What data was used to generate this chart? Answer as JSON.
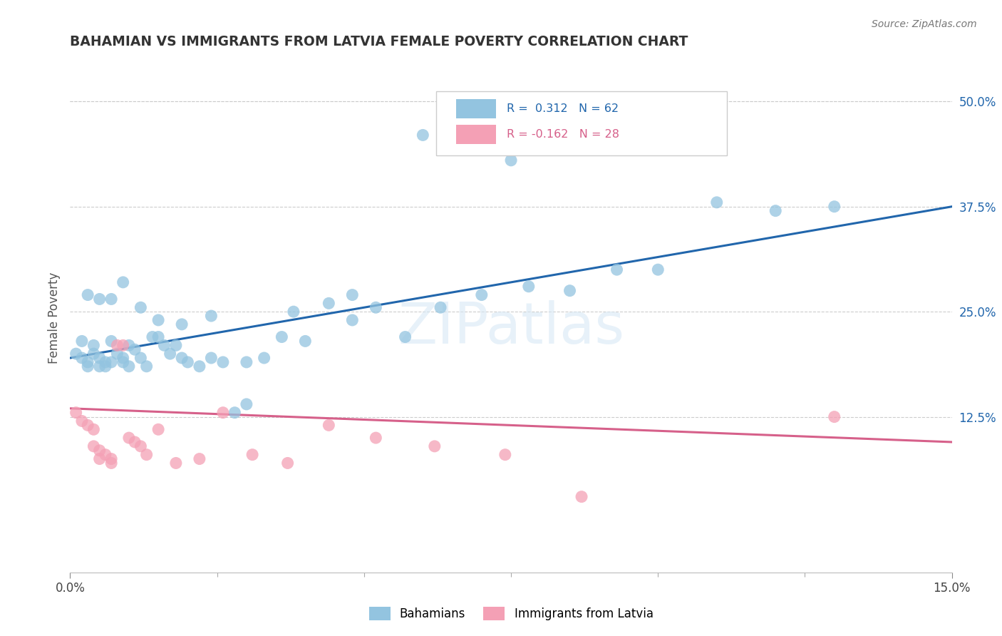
{
  "title": "BAHAMIAN VS IMMIGRANTS FROM LATVIA FEMALE POVERTY CORRELATION CHART",
  "source": "Source: ZipAtlas.com",
  "ylabel": "Female Poverty",
  "ytick_labels": [
    "50.0%",
    "37.5%",
    "25.0%",
    "12.5%"
  ],
  "ytick_values": [
    0.5,
    0.375,
    0.25,
    0.125
  ],
  "xmin": 0.0,
  "xmax": 0.15,
  "ymin": -0.06,
  "ymax": 0.545,
  "xtick_labels": [
    "0.0%",
    "15.0%"
  ],
  "blue_color": "#93c4e0",
  "blue_line_color": "#2166ac",
  "pink_color": "#f4a0b5",
  "pink_line_color": "#d6608a",
  "blue_scatter_x": [
    0.001,
    0.002,
    0.003,
    0.003,
    0.004,
    0.004,
    0.005,
    0.005,
    0.006,
    0.006,
    0.007,
    0.007,
    0.008,
    0.009,
    0.009,
    0.01,
    0.01,
    0.011,
    0.012,
    0.013,
    0.014,
    0.015,
    0.016,
    0.017,
    0.018,
    0.019,
    0.02,
    0.022,
    0.024,
    0.026,
    0.028,
    0.03,
    0.033,
    0.036,
    0.04,
    0.044,
    0.048,
    0.052,
    0.057,
    0.063,
    0.07,
    0.078,
    0.085,
    0.093,
    0.1,
    0.11,
    0.12,
    0.13,
    0.002,
    0.003,
    0.005,
    0.007,
    0.009,
    0.012,
    0.015,
    0.019,
    0.024,
    0.03,
    0.038,
    0.048,
    0.06,
    0.075
  ],
  "blue_scatter_y": [
    0.2,
    0.195,
    0.19,
    0.185,
    0.21,
    0.2,
    0.195,
    0.185,
    0.19,
    0.185,
    0.19,
    0.215,
    0.2,
    0.195,
    0.19,
    0.185,
    0.21,
    0.205,
    0.195,
    0.185,
    0.22,
    0.22,
    0.21,
    0.2,
    0.21,
    0.195,
    0.19,
    0.185,
    0.195,
    0.19,
    0.13,
    0.14,
    0.195,
    0.22,
    0.215,
    0.26,
    0.24,
    0.255,
    0.22,
    0.255,
    0.27,
    0.28,
    0.275,
    0.3,
    0.3,
    0.38,
    0.37,
    0.375,
    0.215,
    0.27,
    0.265,
    0.265,
    0.285,
    0.255,
    0.24,
    0.235,
    0.245,
    0.19,
    0.25,
    0.27,
    0.46,
    0.43
  ],
  "pink_scatter_x": [
    0.001,
    0.002,
    0.003,
    0.004,
    0.004,
    0.005,
    0.005,
    0.006,
    0.007,
    0.007,
    0.008,
    0.009,
    0.01,
    0.011,
    0.012,
    0.013,
    0.015,
    0.018,
    0.022,
    0.026,
    0.031,
    0.037,
    0.044,
    0.052,
    0.062,
    0.074,
    0.087,
    0.13
  ],
  "pink_scatter_y": [
    0.13,
    0.12,
    0.115,
    0.11,
    0.09,
    0.085,
    0.075,
    0.08,
    0.075,
    0.07,
    0.21,
    0.21,
    0.1,
    0.095,
    0.09,
    0.08,
    0.11,
    0.07,
    0.075,
    0.13,
    0.08,
    0.07,
    0.115,
    0.1,
    0.09,
    0.08,
    0.03,
    0.125
  ],
  "blue_line_x0": 0.0,
  "blue_line_y0": 0.195,
  "blue_line_x1": 0.15,
  "blue_line_y1": 0.375,
  "pink_line_x0": 0.0,
  "pink_line_y0": 0.135,
  "pink_line_x1": 0.15,
  "pink_line_y1": 0.095,
  "watermark": "ZIPatlas",
  "legend_label_blue": "Bahamians",
  "legend_label_pink": "Immigrants from Latvia"
}
